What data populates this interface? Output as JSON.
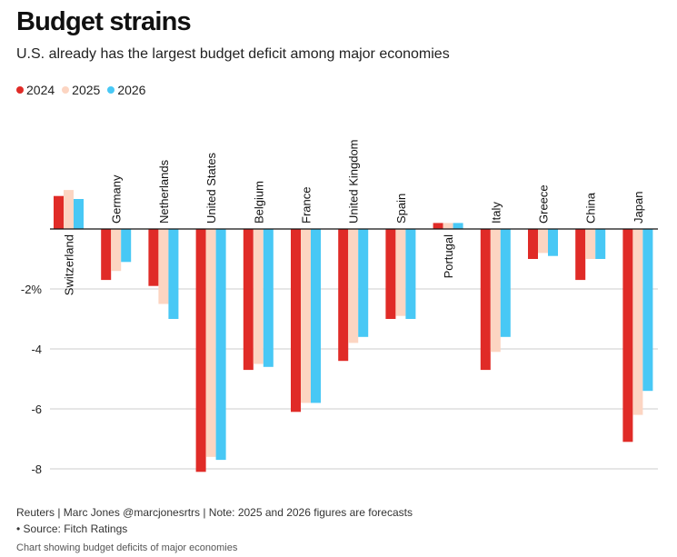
{
  "title": "Budget strains",
  "subtitle": "U.S. already has the largest budget deficit among major economies",
  "footer": {
    "credit": "Reuters | Marc Jones @marcjonesrtrs | Note: 2025 and 2026 figures are forecasts",
    "source": "• Source: Fitch Ratings",
    "caption": "Chart showing budget deficits of major economies"
  },
  "colors": {
    "s2024": "#e02b27",
    "s2025": "#fcd5c2",
    "s2026": "#48c8f5",
    "grid": "#cccccc",
    "axis": "#111111"
  },
  "chart_data": {
    "type": "bar",
    "categories": [
      "Switzerland",
      "Germany",
      "Netherlands",
      "United States",
      "Belgium",
      "France",
      "United Kingdom",
      "Spain",
      "Portugal",
      "Italy",
      "Greece",
      "China",
      "Japan"
    ],
    "series": [
      {
        "name": "2024",
        "values": [
          1.1,
          -1.7,
          -1.9,
          -8.1,
          -4.7,
          -6.1,
          -4.4,
          -3.0,
          0.2,
          -4.7,
          -1.0,
          -1.7,
          -7.1
        ]
      },
      {
        "name": "2025",
        "values": [
          1.3,
          -1.4,
          -2.5,
          -7.6,
          -4.5,
          -5.8,
          -3.8,
          -2.9,
          0.2,
          -4.1,
          -0.8,
          -1.0,
          -6.2
        ]
      },
      {
        "name": "2026",
        "values": [
          1.0,
          -1.1,
          -3.0,
          -7.7,
          -4.6,
          -5.8,
          -3.6,
          -3.0,
          0.2,
          -3.6,
          -0.9,
          -1.0,
          -5.4
        ]
      }
    ],
    "yticks": [
      {
        "value": -2,
        "label": "-2%"
      },
      {
        "value": -4,
        "label": "-4"
      },
      {
        "value": -6,
        "label": "-6"
      },
      {
        "value": -8,
        "label": "-8"
      }
    ],
    "ylim": [
      -8.2,
      2.5
    ],
    "grid": true,
    "legend": "top-left"
  }
}
